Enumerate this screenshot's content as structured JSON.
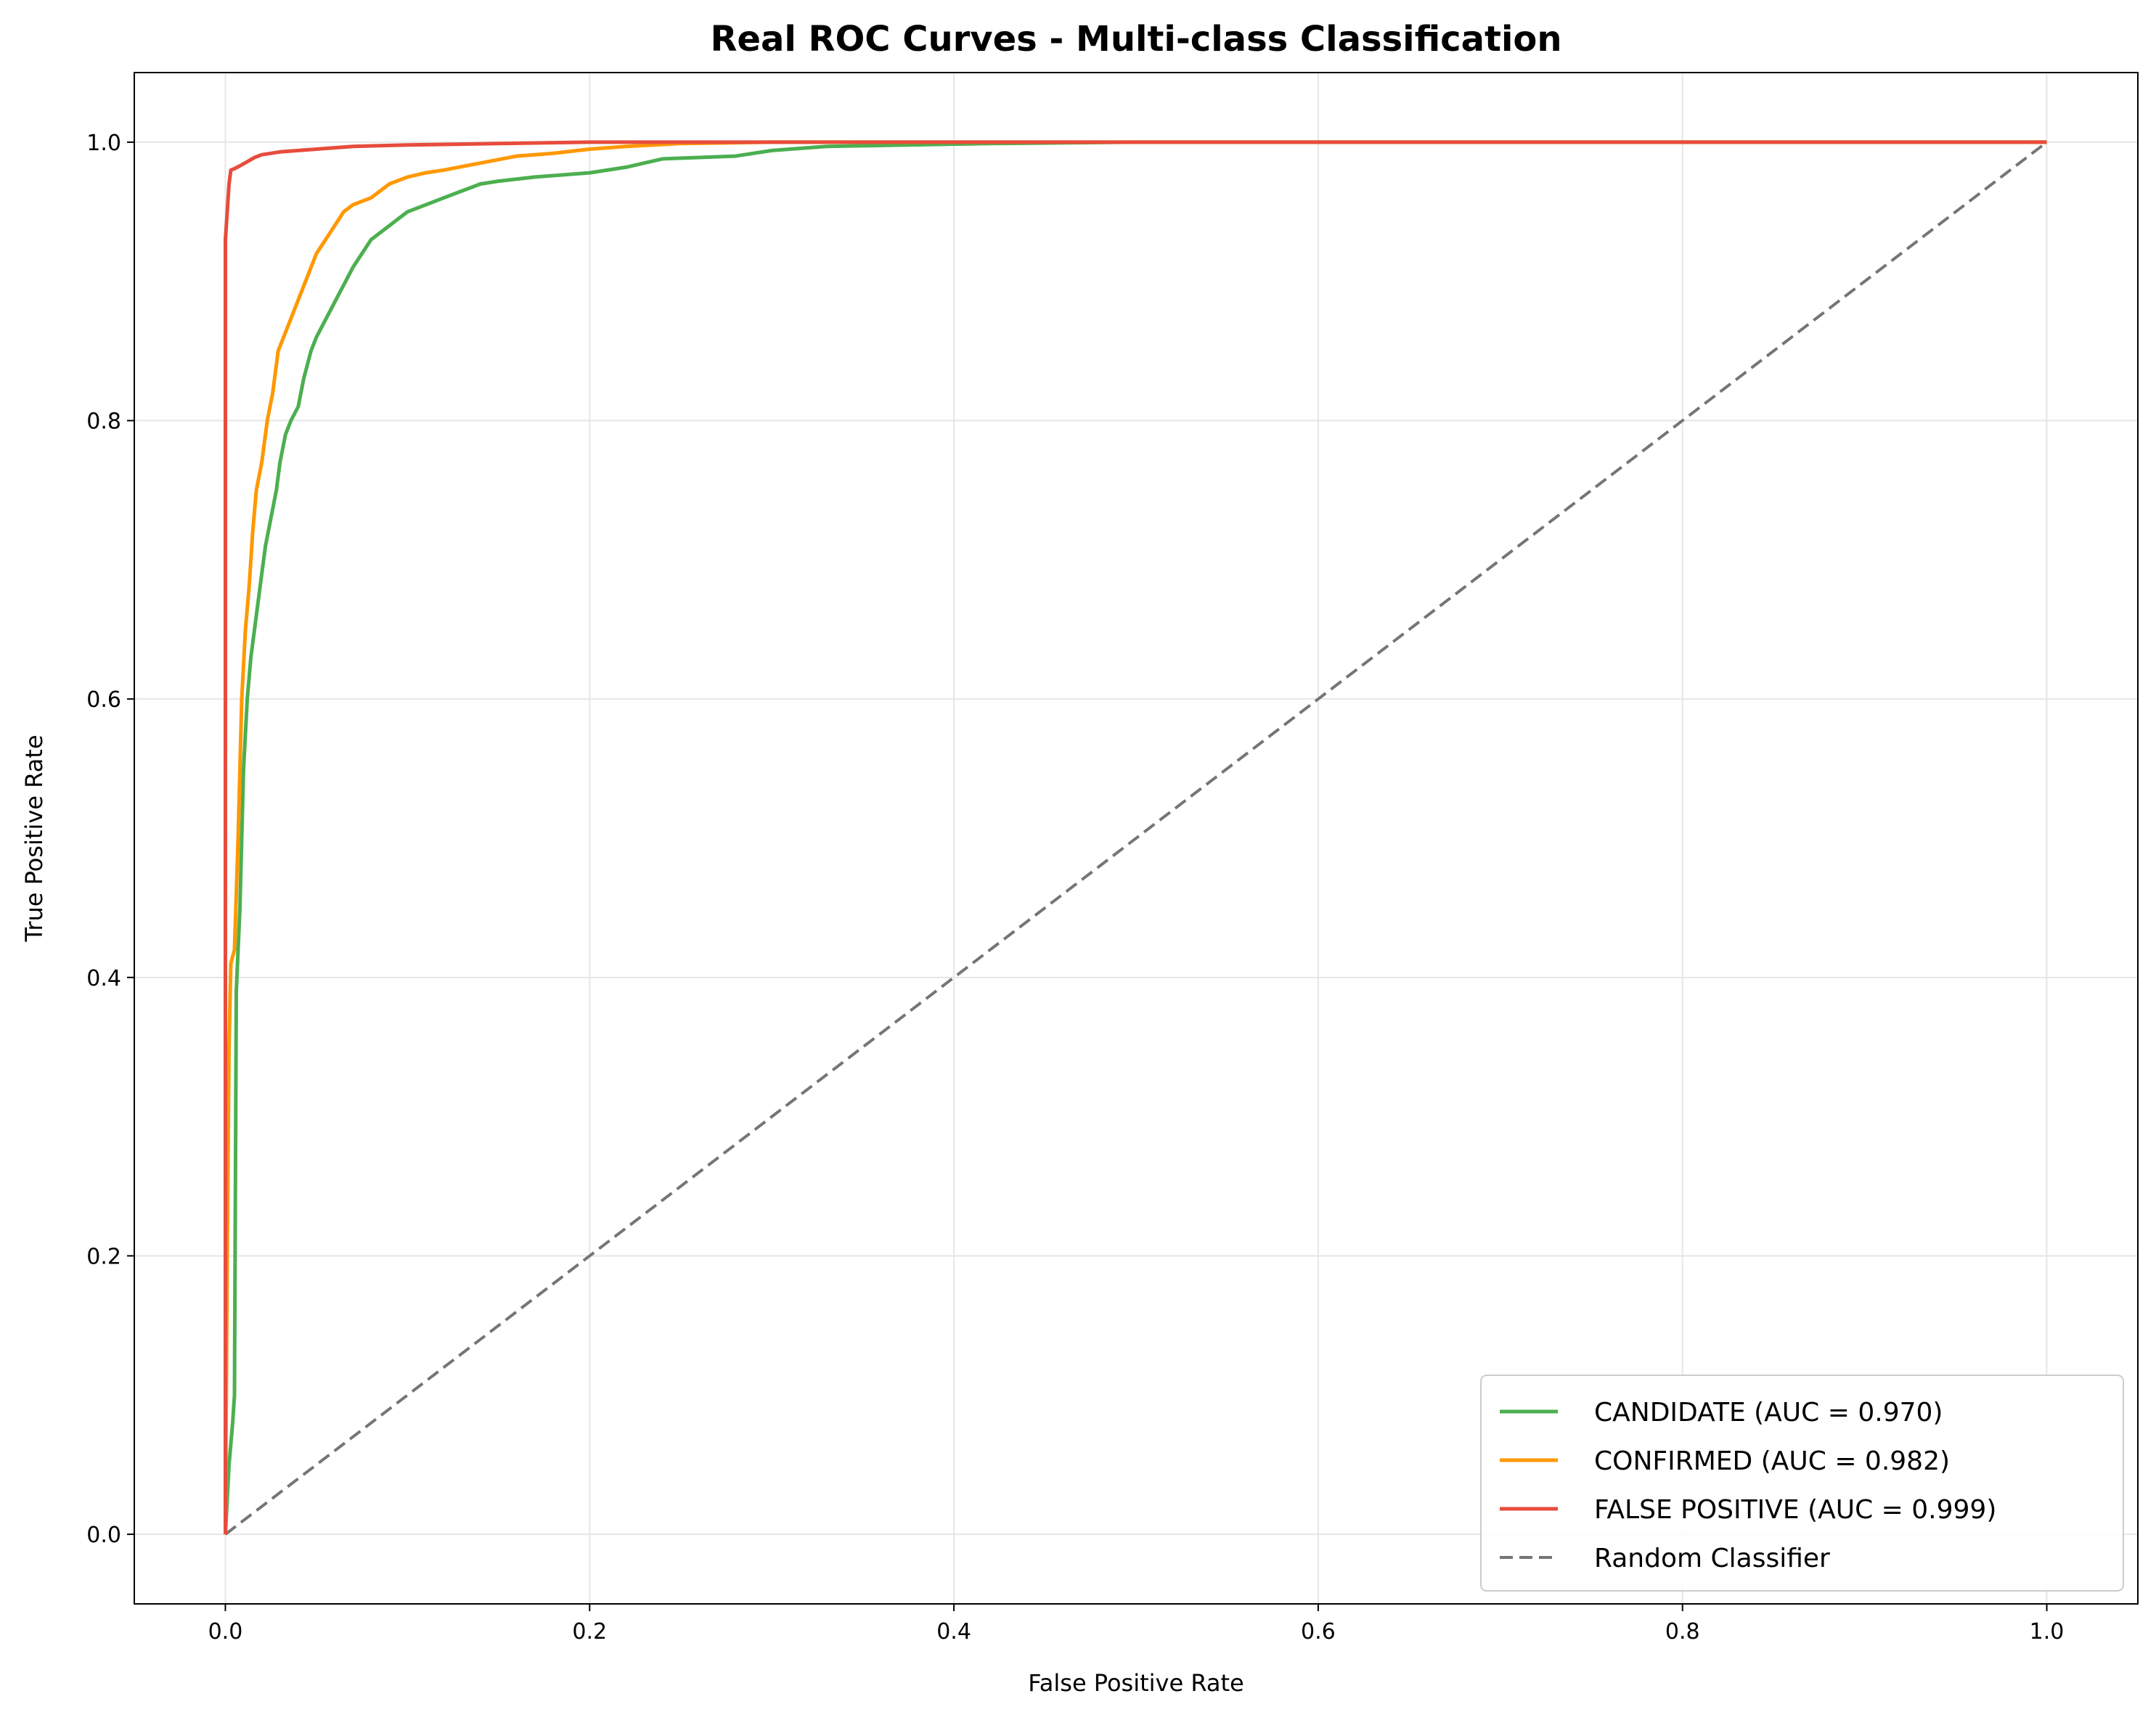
{
  "chart_data": {
    "type": "line",
    "title": "Real ROC Curves - Multi-class Classification",
    "xlabel": "False Positive Rate",
    "ylabel": "True Positive Rate",
    "xlim": [
      -0.05,
      1.05
    ],
    "ylim": [
      -0.05,
      1.05
    ],
    "xticks": [
      0.0,
      0.2,
      0.4,
      0.6,
      0.8,
      1.0
    ],
    "yticks": [
      0.0,
      0.2,
      0.4,
      0.6,
      0.8,
      1.0
    ],
    "xtick_labels": [
      "0.0",
      "0.2",
      "0.4",
      "0.6",
      "0.8",
      "1.0"
    ],
    "ytick_labels": [
      "0.0",
      "0.2",
      "0.4",
      "0.6",
      "0.8",
      "1.0"
    ],
    "grid": true,
    "legend_position": "lower right",
    "series": [
      {
        "name": "CANDIDATE (AUC = 0.970)",
        "color": "#4caf50",
        "dash": "solid",
        "x": [
          0.0,
          0.002,
          0.004,
          0.005,
          0.006,
          0.008,
          0.01,
          0.012,
          0.014,
          0.016,
          0.018,
          0.02,
          0.022,
          0.025,
          0.028,
          0.03,
          0.033,
          0.036,
          0.04,
          0.043,
          0.047,
          0.05,
          0.054,
          0.058,
          0.062,
          0.066,
          0.07,
          0.075,
          0.08,
          0.085,
          0.09,
          0.095,
          0.1,
          0.11,
          0.12,
          0.13,
          0.14,
          0.15,
          0.17,
          0.2,
          0.22,
          0.24,
          0.28,
          0.3,
          0.33,
          0.42,
          0.5,
          0.6,
          0.8,
          1.0
        ],
        "y": [
          0.0,
          0.05,
          0.08,
          0.1,
          0.39,
          0.45,
          0.55,
          0.6,
          0.63,
          0.65,
          0.67,
          0.69,
          0.71,
          0.73,
          0.75,
          0.77,
          0.79,
          0.8,
          0.81,
          0.83,
          0.85,
          0.86,
          0.87,
          0.88,
          0.89,
          0.9,
          0.91,
          0.92,
          0.93,
          0.935,
          0.94,
          0.945,
          0.95,
          0.955,
          0.96,
          0.965,
          0.97,
          0.972,
          0.975,
          0.978,
          0.982,
          0.988,
          0.99,
          0.994,
          0.997,
          0.999,
          1.0,
          1.0,
          1.0,
          1.0
        ]
      },
      {
        "name": "CONFIRMED (AUC = 0.982)",
        "color": "#ff9800",
        "dash": "solid",
        "x": [
          0.0,
          0.001,
          0.002,
          0.003,
          0.005,
          0.007,
          0.009,
          0.011,
          0.013,
          0.015,
          0.017,
          0.02,
          0.023,
          0.026,
          0.029,
          0.032,
          0.035,
          0.038,
          0.041,
          0.044,
          0.047,
          0.05,
          0.055,
          0.06,
          0.065,
          0.07,
          0.08,
          0.09,
          0.1,
          0.11,
          0.12,
          0.14,
          0.16,
          0.18,
          0.2,
          0.22,
          0.25,
          0.3,
          0.4,
          0.6,
          0.8,
          1.0
        ],
        "y": [
          0.0,
          0.2,
          0.35,
          0.41,
          0.42,
          0.5,
          0.6,
          0.65,
          0.68,
          0.72,
          0.75,
          0.77,
          0.8,
          0.82,
          0.85,
          0.86,
          0.87,
          0.88,
          0.89,
          0.9,
          0.91,
          0.92,
          0.93,
          0.94,
          0.95,
          0.955,
          0.96,
          0.97,
          0.975,
          0.978,
          0.98,
          0.985,
          0.99,
          0.992,
          0.995,
          0.997,
          0.999,
          1.0,
          1.0,
          1.0,
          1.0,
          1.0
        ]
      },
      {
        "name": "FALSE POSITIVE (AUC = 0.999)",
        "color": "#e74c3c",
        "dash": "solid",
        "x": [
          0.0,
          0.0,
          0.002,
          0.003,
          0.005,
          0.008,
          0.012,
          0.016,
          0.02,
          0.03,
          0.05,
          0.07,
          0.1,
          0.15,
          0.2,
          0.4,
          0.6,
          0.8,
          1.0
        ],
        "y": [
          0.0,
          0.93,
          0.97,
          0.98,
          0.981,
          0.983,
          0.986,
          0.989,
          0.991,
          0.993,
          0.995,
          0.997,
          0.998,
          0.999,
          1.0,
          1.0,
          1.0,
          1.0,
          1.0
        ]
      },
      {
        "name": "Random Classifier",
        "color": "#757575",
        "dash": "dashed",
        "x": [
          0.0,
          1.0
        ],
        "y": [
          0.0,
          1.0
        ]
      }
    ]
  }
}
